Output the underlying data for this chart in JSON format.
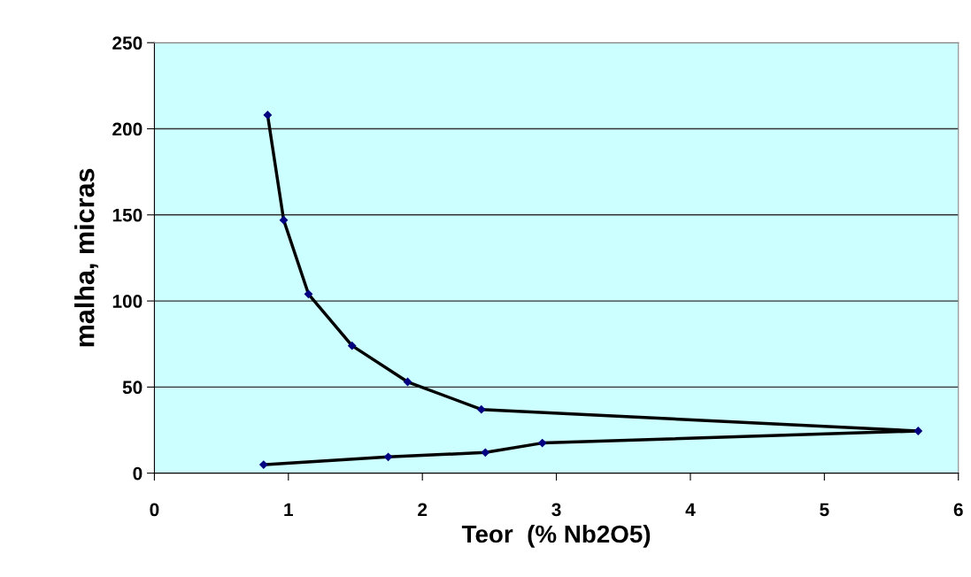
{
  "chart_data": {
    "type": "line",
    "xlabel": "Teor  (% Nb2O5)",
    "ylabel": "malha, micras",
    "series": [
      {
        "color": "#000000",
        "x": [
          0.845,
          0.965,
          1.15,
          1.475,
          1.89,
          2.44,
          5.7,
          2.895,
          2.47,
          1.745,
          0.815
        ],
        "values": [
          208,
          147,
          104,
          74,
          53,
          37,
          24.5,
          17.5,
          12,
          9.4,
          4.9
        ]
      }
    ],
    "xlim": [
      0,
      6
    ],
    "xticks": [
      0,
      1,
      2,
      3,
      4,
      5,
      6
    ],
    "ylim": [
      0,
      250
    ],
    "yticks": [
      0,
      50,
      100,
      150,
      200,
      250
    ],
    "grid": "y",
    "marker": "diamond",
    "line_style": "solid",
    "legend": false
  }
}
